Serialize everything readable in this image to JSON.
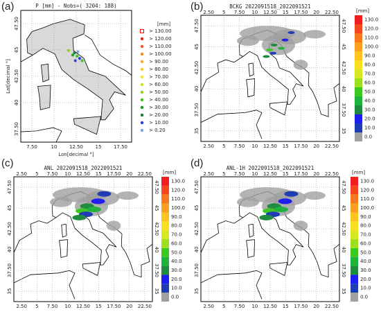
{
  "panels": [
    {
      "label": "(a)",
      "title": "P [mm] - Nobs=( 3204: 188)",
      "xlabel": "Lon[decimal °]",
      "ylabel": "Lat[decimal °]",
      "xticks": [
        "7.50",
        "10",
        "12.50",
        "15",
        "17.50"
      ],
      "yticks": [
        "47.50",
        "45",
        "42.50",
        "40",
        "37.50"
      ],
      "legend": {
        "unit": "[mm]",
        "entries": [
          "> 130.00",
          "> 120.00",
          "> 110.00",
          "> 100.00",
          "> 90.00",
          "> 80.00",
          "> 70.00",
          "> 60.00",
          "> 50.00",
          "> 40.00",
          "> 30.00",
          "> 20.00",
          "> 10.00",
          "> 0.20"
        ],
        "colors": [
          "#ff0000",
          "#e8261b",
          "#f05a1e",
          "#f7841e",
          "#fbaa1e",
          "#fdc81e",
          "#f5e61e",
          "#cde21e",
          "#8fd21e",
          "#3fbf1e",
          "#139e1e",
          "#1e7a3c",
          "#1e3ce6",
          "#7fa0e6"
        ]
      }
    },
    {
      "label": "(b)",
      "title": "BCKG 2022091518_2022091521",
      "xticks": [
        "2.50",
        "5",
        "7.50",
        "10",
        "12.50",
        "15",
        "17.50",
        "20",
        "22.50"
      ],
      "yticks": [
        "47.50",
        "45",
        "42.50",
        "40",
        "37.50",
        "35"
      ]
    },
    {
      "label": "(c)",
      "title": "ANL 2022091518_2022091521",
      "xticks": [
        "2.50",
        "5",
        "7.50",
        "10",
        "12.50",
        "15",
        "17.50",
        "20",
        "22.50"
      ],
      "yticks": [
        "47.50",
        "45",
        "42.50",
        "40",
        "37.50",
        "35"
      ]
    },
    {
      "label": "(d)",
      "title": "ANL-1H 2022091518_2022091521",
      "xticks": [
        "2.50",
        "5",
        "7.50",
        "10",
        "12.50",
        "15",
        "17.50",
        "20",
        "22.50"
      ],
      "yticks": [
        "47.50",
        "45",
        "42.50",
        "40",
        "37.50",
        "35"
      ]
    }
  ],
  "colorbar": {
    "unit": "[mm]",
    "labels": [
      "130.0",
      "120.0",
      "110.0",
      "100.0",
      "90.0",
      "80.0",
      "70.0",
      "60.0",
      "50.0",
      "40.0",
      "30.0",
      "20.0",
      "10.0",
      "0.0"
    ],
    "colors": [
      "#f01e1e",
      "#f5461e",
      "#f8781e",
      "#fba01e",
      "#fdc31e",
      "#f8e01e",
      "#d8e81e",
      "#9ee01e",
      "#3cc81e",
      "#1eb43c",
      "#1e8c3c",
      "#1e1ef0",
      "#1e3cb4",
      "#a0a0a0"
    ]
  }
}
